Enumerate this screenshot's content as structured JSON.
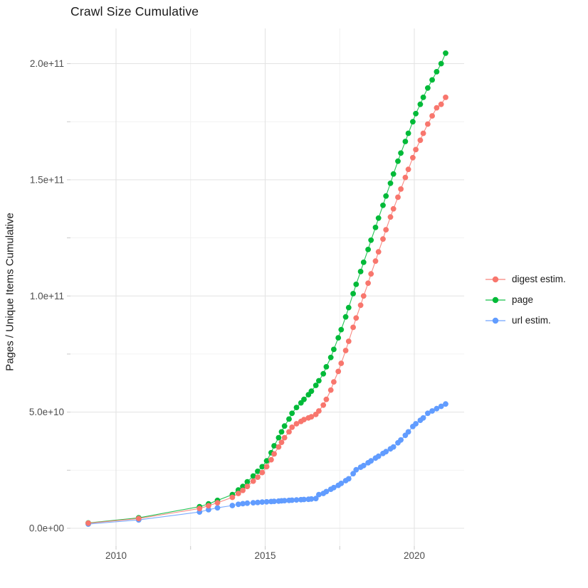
{
  "chart_data": {
    "type": "scatter",
    "title": "Crawl Size Cumulative",
    "xlabel": "",
    "ylabel": "Pages / Unique Items Cumulative",
    "values_unit": "1e9 (billions of pages / unique items)",
    "x_unit": "decimal year (crawl date)",
    "x": [
      2009.07,
      2010.76,
      2012.8,
      2013.1,
      2013.4,
      2013.9,
      2014.1,
      2014.25,
      2014.4,
      2014.6,
      2014.75,
      2014.9,
      2015.05,
      2015.2,
      2015.3,
      2015.45,
      2015.55,
      2015.65,
      2015.8,
      2015.9,
      2016.05,
      2016.2,
      2016.3,
      2016.45,
      2016.55,
      2016.7,
      2016.8,
      2016.95,
      2017.05,
      2017.2,
      2017.3,
      2017.45,
      2017.55,
      2017.7,
      2017.8,
      2017.95,
      2018.05,
      2018.2,
      2018.3,
      2018.45,
      2018.55,
      2018.7,
      2018.8,
      2018.95,
      2019.05,
      2019.2,
      2019.3,
      2019.45,
      2019.55,
      2019.7,
      2019.8,
      2019.95,
      2020.05,
      2020.2,
      2020.3,
      2020.45,
      2020.6,
      2020.75,
      2020.9,
      2021.05
    ],
    "series": [
      {
        "name": "digest estim.",
        "color": "#F8766D",
        "values": [
          2.2,
          4.2,
          8.5,
          9.7,
          11,
          13.3,
          15,
          16.3,
          18,
          20.3,
          22,
          24,
          26.5,
          29.5,
          32,
          35,
          37,
          39,
          41.5,
          43.5,
          45,
          46,
          46.8,
          47.5,
          48,
          49,
          50.5,
          53,
          55.5,
          59.5,
          63,
          67.5,
          71,
          76.5,
          80.5,
          86.5,
          90.5,
          96,
          100,
          105.5,
          109.5,
          115,
          119,
          124.5,
          128.5,
          134,
          137.5,
          142.5,
          146,
          151,
          154.5,
          159.5,
          163,
          167,
          170,
          174,
          177.5,
          181,
          182.5,
          185.5
        ]
      },
      {
        "name": "page",
        "color": "#00BA38",
        "values": [
          2.3,
          4.5,
          9.3,
          10.5,
          12,
          14.5,
          16.5,
          18,
          20,
          22.5,
          24.5,
          26.5,
          29,
          32.5,
          35.5,
          39,
          41.5,
          44,
          47,
          49.5,
          52,
          54,
          55.5,
          57.5,
          59,
          61.5,
          63.5,
          66.5,
          69.5,
          73.5,
          77,
          82,
          85.5,
          91,
          95,
          101,
          105,
          110.5,
          114.5,
          120,
          124,
          129.5,
          133.5,
          139,
          143,
          148.5,
          152.5,
          158,
          161.5,
          166.5,
          170,
          175,
          178.5,
          182.5,
          185.5,
          189.5,
          193,
          196.5,
          200,
          204.5
        ]
      },
      {
        "name": "url estim.",
        "color": "#619CFF",
        "values": [
          1.8,
          3.6,
          7.0,
          8.0,
          8.8,
          9.8,
          10.3,
          10.6,
          10.8,
          11.0,
          11.1,
          11.3,
          11.4,
          11.5,
          11.6,
          11.7,
          11.8,
          11.9,
          12.0,
          12.1,
          12.2,
          12.3,
          12.4,
          12.5,
          12.6,
          12.8,
          14.5,
          15.0,
          15.8,
          16.8,
          17.5,
          18.5,
          19.3,
          20.5,
          21.3,
          23.5,
          25.2,
          26.3,
          27,
          28.2,
          29,
          30.2,
          31,
          32.2,
          33,
          34.2,
          35,
          36.8,
          38,
          40,
          41.5,
          43.8,
          45,
          46.5,
          47.5,
          49.5,
          50.5,
          51.5,
          52.5,
          53.5
        ]
      }
    ],
    "x_axis": {
      "major_ticks": [
        2010,
        2015,
        2020
      ],
      "major_labels": [
        "2010",
        "2015",
        "2020"
      ],
      "minor_ticks": [
        2012.5,
        2017.5
      ],
      "range_shown": [
        2008.5,
        2021.7
      ]
    },
    "y_axis": {
      "major_ticks": [
        0,
        50,
        100,
        150,
        200
      ],
      "major_labels": [
        "0.0e+00",
        "5.0e+10",
        "1.0e+11",
        "1.5e+11",
        "2.0e+11"
      ],
      "minor_ticks": [
        25,
        75,
        125,
        175
      ],
      "range_shown": [
        -10,
        215
      ]
    },
    "legend": {
      "position": "right",
      "entries": [
        "digest estim.",
        "page",
        "url estim."
      ]
    },
    "grid": {
      "major_color": "#e3e3e3",
      "minor_color": "#f0f0f0",
      "tick_color": "#c9c9c9"
    },
    "text_colors": {
      "title": "#1a1a1a",
      "axis_text": "#4d4d4d",
      "axis_title": "#1a1a1a"
    }
  }
}
